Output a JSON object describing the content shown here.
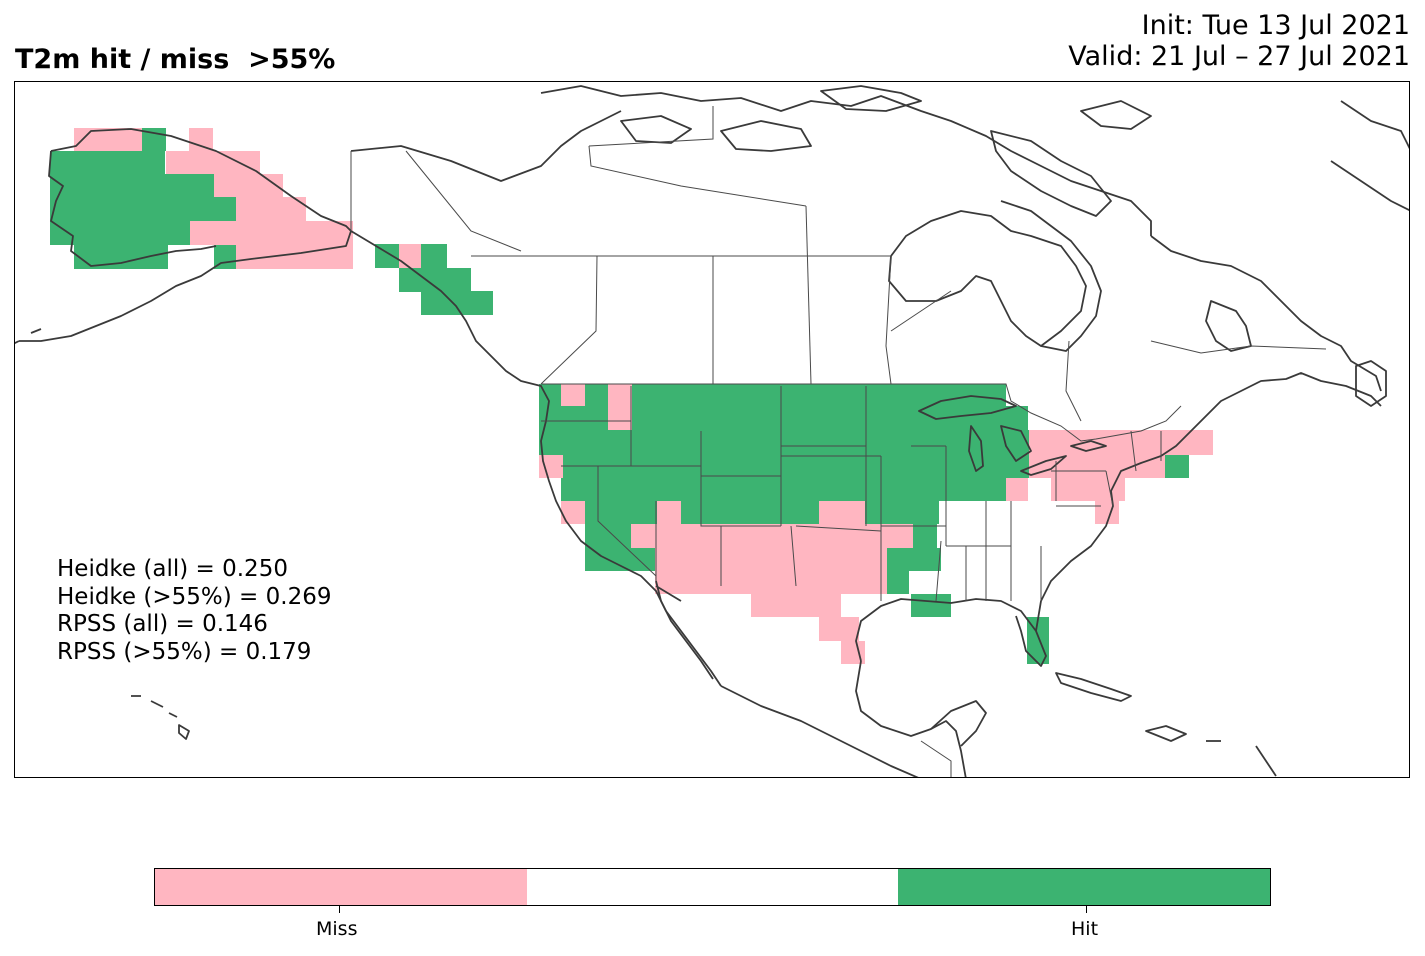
{
  "title": {
    "left": "T2m hit / miss  >55%",
    "init": "Init: Tue 13 Jul 2021",
    "valid": "Valid: 21 Jul – 27 Jul 2021"
  },
  "scores": {
    "heidke_all": "Heidke (all) = 0.250",
    "heidke_55": "Heidke (>55%) = 0.269",
    "rpss_all": "RPSS (all) = 0.146",
    "rpss_55": "RPSS (>55%) = 0.179"
  },
  "colorbar": {
    "colors": {
      "miss": "#ffb6c1",
      "neutral": "#ffffff",
      "hit": "#3cb371"
    },
    "labels": {
      "miss": "Miss",
      "hit": "Hit"
    }
  },
  "map": {
    "coastline_color": "#3a3a3a",
    "border_color": "#4a4a4a"
  }
}
